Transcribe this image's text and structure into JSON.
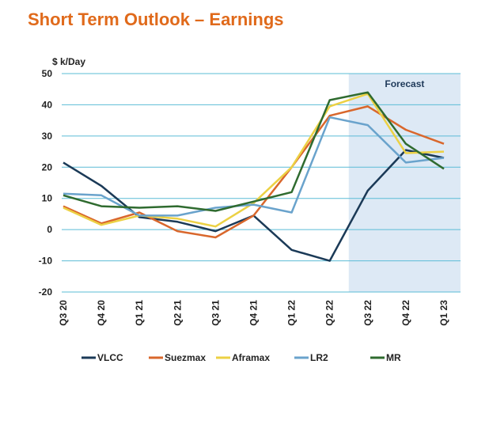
{
  "title": "Short Term Outlook – Earnings",
  "chart_data": {
    "type": "line",
    "ylabel": "$ k/Day",
    "ylim": [
      -20,
      50
    ],
    "yticks": [
      -20,
      -10,
      0,
      10,
      20,
      30,
      40,
      50
    ],
    "categories": [
      "Q3 20",
      "Q4 20",
      "Q1 21",
      "Q2 21",
      "Q3 21",
      "Q4 21",
      "Q1 22",
      "Q2 22",
      "Q3 22",
      "Q4 22",
      "Q1 23"
    ],
    "forecast": {
      "label": "Forecast",
      "from_category_index": 7.5
    },
    "grid": "horizontal",
    "legend_position": "bottom",
    "series": [
      {
        "name": "VLCC",
        "color": "#1b3a57",
        "values": [
          21.5,
          14.0,
          4.0,
          2.5,
          -0.5,
          4.5,
          -6.5,
          -10.0,
          12.5,
          25.5,
          23.0
        ]
      },
      {
        "name": "Suezmax",
        "color": "#d9672c",
        "values": [
          7.5,
          2.0,
          5.5,
          -0.5,
          -2.5,
          4.5,
          20.0,
          36.5,
          39.5,
          32.0,
          27.5
        ]
      },
      {
        "name": "Aframax",
        "color": "#ecd144",
        "values": [
          7.0,
          1.5,
          4.5,
          3.5,
          1.0,
          8.5,
          20.0,
          39.5,
          43.5,
          24.5,
          25.0
        ]
      },
      {
        "name": "LR2",
        "color": "#6aa3cc",
        "values": [
          11.5,
          11.0,
          4.5,
          4.5,
          7.0,
          8.0,
          5.5,
          36.0,
          33.5,
          21.5,
          23.0
        ]
      },
      {
        "name": "MR",
        "color": "#2f6b2f",
        "values": [
          11.0,
          7.5,
          7.0,
          7.5,
          6.0,
          9.0,
          12.0,
          41.5,
          44.0,
          27.5,
          19.5
        ]
      }
    ]
  }
}
